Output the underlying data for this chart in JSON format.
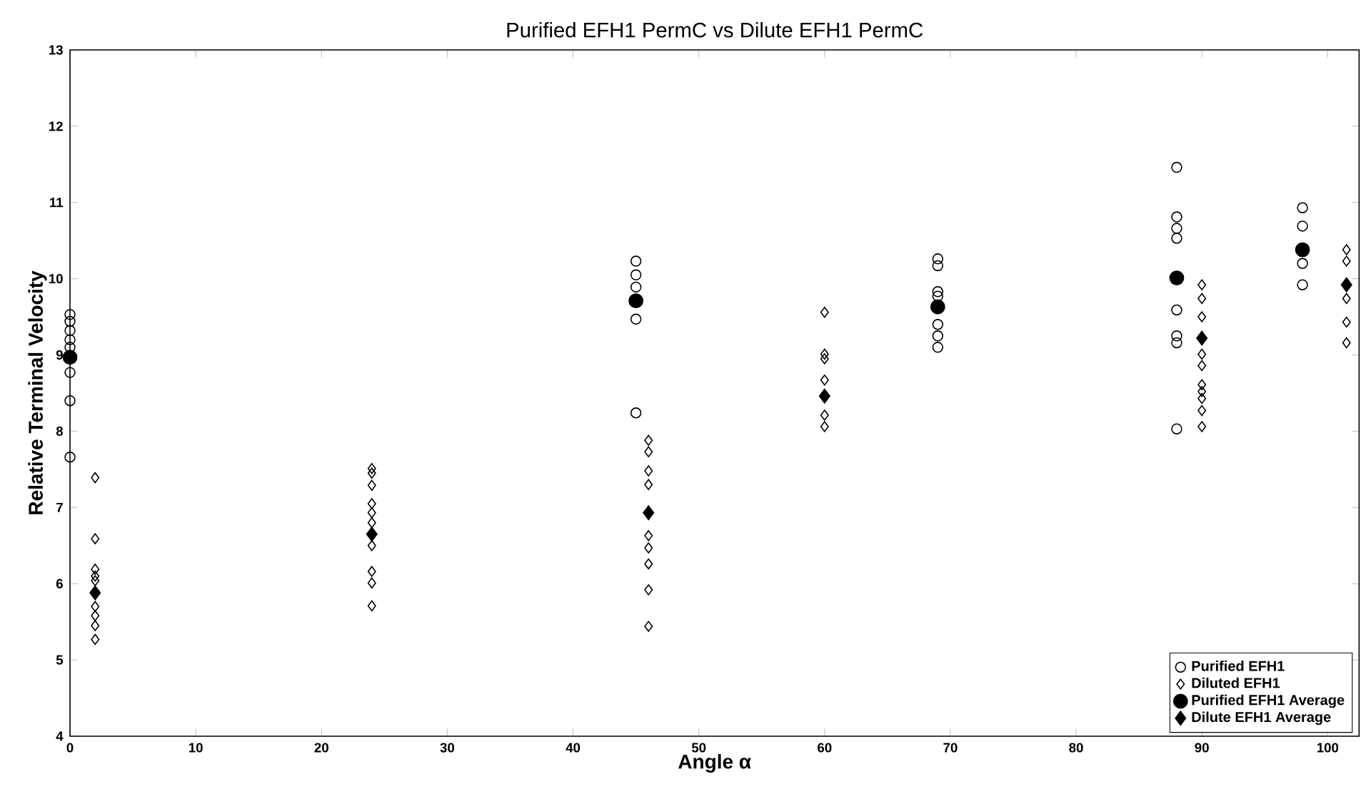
{
  "chart_data": {
    "type": "scatter",
    "title": "Purified EFH1 PermC vs Dilute EFH1 PermC",
    "xlabel": "Angle α",
    "ylabel": "Relative Terminal Velocity",
    "xlim": [
      0,
      102.5
    ],
    "ylim": [
      4,
      13
    ],
    "xticks": [
      0,
      10,
      20,
      30,
      40,
      50,
      60,
      70,
      80,
      90,
      100
    ],
    "yticks": [
      4,
      5,
      6,
      7,
      8,
      9,
      10,
      11,
      12,
      13
    ],
    "grid": false,
    "legend": "bottom right",
    "series": [
      {
        "name": "Purified EFH1",
        "color": "#000000",
        "marker": "circle",
        "x": [
          0,
          0,
          0,
          0,
          0,
          0,
          0,
          0,
          45,
          45,
          45,
          45,
          45,
          69,
          69,
          69,
          69,
          69,
          69,
          69,
          88,
          88,
          88,
          88,
          88,
          88,
          88,
          88,
          98,
          98,
          98,
          98
        ],
        "values": [
          9.53,
          9.44,
          9.32,
          9.2,
          9.1,
          8.77,
          8.4,
          7.66,
          10.23,
          10.05,
          9.89,
          9.47,
          8.24,
          10.26,
          10.17,
          9.83,
          9.77,
          9.4,
          9.25,
          9.1,
          11.46,
          10.81,
          10.66,
          10.53,
          9.59,
          9.25,
          9.16,
          8.03,
          10.93,
          10.69,
          10.2,
          9.92
        ]
      },
      {
        "name": "Diluted EFH1",
        "color": "#000000",
        "marker": "diamond",
        "x": [
          2,
          2,
          2,
          2,
          2,
          2,
          2,
          2,
          2,
          24,
          24,
          24,
          24,
          24,
          24,
          24,
          24,
          24,
          24,
          46,
          46,
          46,
          46,
          46,
          46,
          46,
          46,
          46,
          60,
          60,
          60,
          60,
          60,
          60,
          90,
          90,
          90,
          90,
          90,
          90,
          90,
          90,
          90,
          90,
          101.5,
          101.5,
          101.5,
          101.5,
          101.5
        ],
        "values": [
          7.39,
          6.59,
          6.19,
          6.1,
          6.04,
          5.7,
          5.58,
          5.45,
          5.27,
          7.51,
          7.45,
          7.29,
          7.05,
          6.93,
          6.8,
          6.5,
          6.16,
          6.01,
          5.71,
          7.88,
          7.73,
          7.48,
          7.3,
          6.63,
          6.47,
          6.26,
          5.92,
          5.44,
          9.56,
          9.01,
          8.95,
          8.67,
          8.21,
          8.06,
          9.92,
          9.74,
          9.5,
          9.01,
          8.86,
          8.61,
          8.52,
          8.43,
          8.27,
          8.06,
          10.38,
          10.23,
          9.74,
          9.43,
          9.16
        ]
      },
      {
        "name": "Purified EFH1 Average",
        "color": "#000000",
        "marker": "circle",
        "x": [
          0,
          45,
          69,
          88,
          98
        ],
        "values": [
          8.97,
          9.71,
          9.63,
          10.01,
          10.38
        ]
      },
      {
        "name": "Dilute EFH1 Average",
        "color": "#000000",
        "marker": "diamond",
        "x": [
          2,
          24,
          46,
          60,
          90,
          101.5
        ],
        "values": [
          5.88,
          6.65,
          6.93,
          8.46,
          9.22,
          9.92
        ]
      }
    ]
  }
}
